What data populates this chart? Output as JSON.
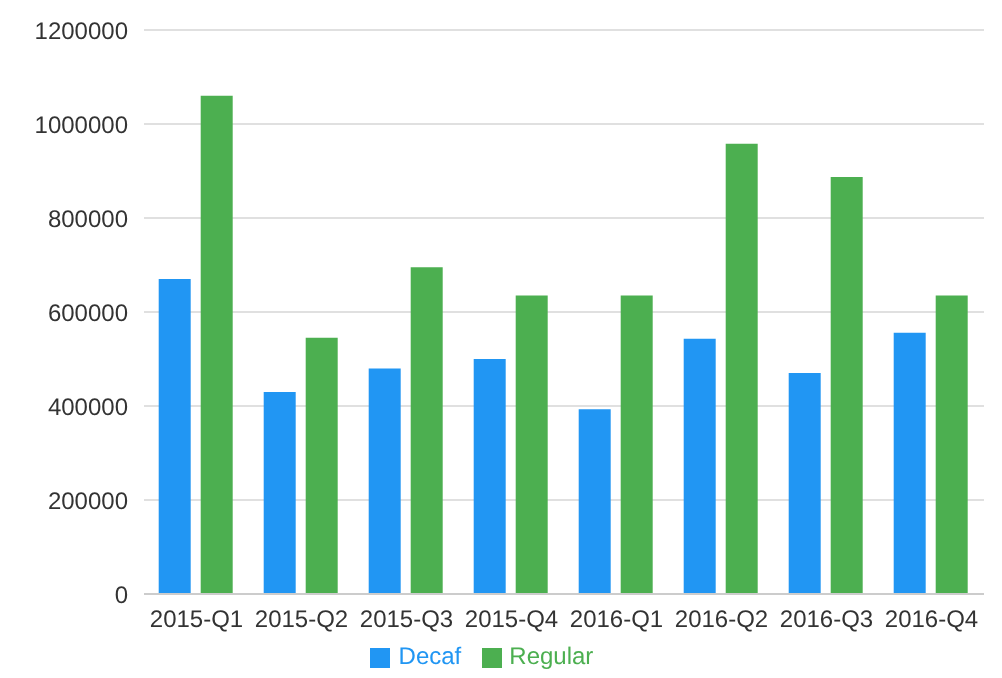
{
  "chart_data": {
    "type": "bar",
    "categories": [
      "2015-Q1",
      "2015-Q2",
      "2015-Q3",
      "2015-Q4",
      "2016-Q1",
      "2016-Q2",
      "2016-Q3",
      "2016-Q4"
    ],
    "series": [
      {
        "name": "Decaf",
        "color": "#2196f3",
        "values": [
          670000,
          430000,
          480000,
          500000,
          393000,
          543000,
          470000,
          556000
        ]
      },
      {
        "name": "Regular",
        "color": "#4caf50",
        "values": [
          1060000,
          545000,
          695000,
          635000,
          635000,
          958000,
          887000,
          635000
        ]
      }
    ],
    "ylim": [
      0,
      1200000
    ],
    "yticks": [
      0,
      200000,
      400000,
      600000,
      800000,
      1000000,
      1200000
    ],
    "grid": "y",
    "legend": "bottom"
  }
}
